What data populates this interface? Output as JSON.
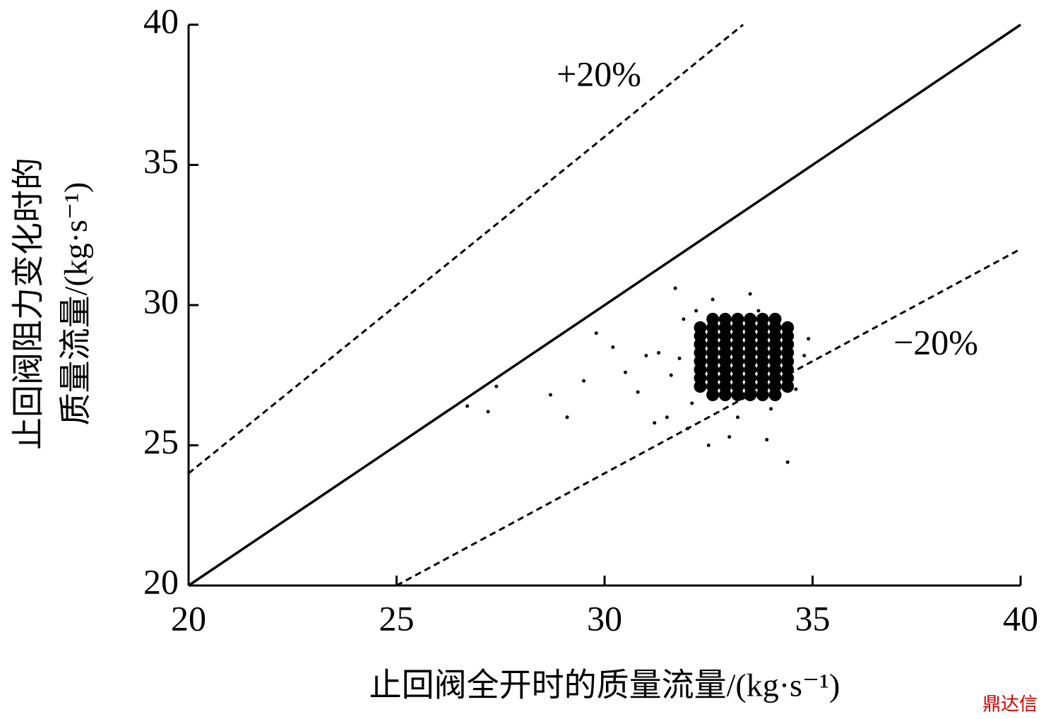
{
  "chart_data": {
    "type": "scatter",
    "x_label": "止回阀全开时的质量流量/(kg·s⁻¹)",
    "y_label": [
      "止回阀阻力变化时的",
      "质量流量/(kg·s⁻¹)"
    ],
    "xlim": [
      20,
      40
    ],
    "ylim": [
      20,
      40
    ],
    "xticks": [
      20,
      25,
      30,
      35,
      40
    ],
    "yticks": [
      20,
      25,
      30,
      35,
      40
    ],
    "lines": [
      {
        "x": [
          20,
          40
        ],
        "y": [
          20,
          40
        ],
        "color": "#000",
        "dash": false
      },
      {
        "x": [
          20,
          33.33
        ],
        "y": [
          24,
          40
        ],
        "color": "#000",
        "dash": true
      },
      {
        "x": [
          25,
          40
        ],
        "y": [
          20,
          32
        ],
        "color": "#000",
        "dash": true
      }
    ],
    "annotations": [
      "+20%",
      "−20%"
    ],
    "series": [
      {
        "color": "#000",
        "marker_size": 2.5,
        "points": [
          [
            26.7,
            26.4
          ],
          [
            27.2,
            26.2
          ],
          [
            27.4,
            27.1
          ],
          [
            28.7,
            26.8
          ],
          [
            29.1,
            26.0
          ],
          [
            29.5,
            27.3
          ],
          [
            29.8,
            29.0
          ],
          [
            30.5,
            27.6
          ],
          [
            30.8,
            26.9
          ],
          [
            31.2,
            25.8
          ],
          [
            31.5,
            26.0
          ],
          [
            31.0,
            28.2
          ],
          [
            31.7,
            30.6
          ],
          [
            32.5,
            25.0
          ],
          [
            33.0,
            25.3
          ],
          [
            34.4,
            24.4
          ],
          [
            33.9,
            25.2
          ],
          [
            32.0,
            25.6
          ],
          [
            33.5,
            30.4
          ],
          [
            31.3,
            28.3
          ],
          [
            31.6,
            27.5
          ],
          [
            34.8,
            28.2
          ],
          [
            34.6,
            27.0
          ],
          [
            32.2,
            29.8
          ],
          [
            33.7,
            29.8
          ],
          [
            30.2,
            28.5
          ],
          [
            31.9,
            29.5
          ],
          [
            31.8,
            28.1
          ],
          [
            34.9,
            28.8
          ],
          [
            32.6,
            30.2
          ],
          [
            33.2,
            26.0
          ],
          [
            34.0,
            26.3
          ],
          [
            32.1,
            26.5
          ]
        ]
      },
      {
        "color": "#000",
        "marker_size": 9,
        "points": [
          [
            32.6,
            26.8
          ],
          [
            32.9,
            26.8
          ],
          [
            33.2,
            26.8
          ],
          [
            33.5,
            26.8
          ],
          [
            33.8,
            26.8
          ],
          [
            34.1,
            26.8
          ],
          [
            32.3,
            27.1
          ],
          [
            32.6,
            27.1
          ],
          [
            32.9,
            27.1
          ],
          [
            33.2,
            27.1
          ],
          [
            33.5,
            27.1
          ],
          [
            33.8,
            27.1
          ],
          [
            34.1,
            27.1
          ],
          [
            34.4,
            27.1
          ],
          [
            32.3,
            27.4
          ],
          [
            32.6,
            27.4
          ],
          [
            32.9,
            27.4
          ],
          [
            33.2,
            27.4
          ],
          [
            33.5,
            27.4
          ],
          [
            33.8,
            27.4
          ],
          [
            34.1,
            27.4
          ],
          [
            34.4,
            27.4
          ],
          [
            32.3,
            27.7
          ],
          [
            32.6,
            27.7
          ],
          [
            32.9,
            27.7
          ],
          [
            33.2,
            27.7
          ],
          [
            33.5,
            27.7
          ],
          [
            33.8,
            27.7
          ],
          [
            34.1,
            27.7
          ],
          [
            34.4,
            27.7
          ],
          [
            32.3,
            28.0
          ],
          [
            32.6,
            28.0
          ],
          [
            32.9,
            28.0
          ],
          [
            33.2,
            28.0
          ],
          [
            33.5,
            28.0
          ],
          [
            33.8,
            28.0
          ],
          [
            34.1,
            28.0
          ],
          [
            34.4,
            28.0
          ],
          [
            32.3,
            28.3
          ],
          [
            32.6,
            28.3
          ],
          [
            32.9,
            28.3
          ],
          [
            33.2,
            28.3
          ],
          [
            33.5,
            28.3
          ],
          [
            33.8,
            28.3
          ],
          [
            34.1,
            28.3
          ],
          [
            34.4,
            28.3
          ],
          [
            32.3,
            28.6
          ],
          [
            32.6,
            28.6
          ],
          [
            32.9,
            28.6
          ],
          [
            33.2,
            28.6
          ],
          [
            33.5,
            28.6
          ],
          [
            33.8,
            28.6
          ],
          [
            34.1,
            28.6
          ],
          [
            34.4,
            28.6
          ],
          [
            32.3,
            28.9
          ],
          [
            32.6,
            28.9
          ],
          [
            32.9,
            28.9
          ],
          [
            33.2,
            28.9
          ],
          [
            33.5,
            28.9
          ],
          [
            33.8,
            28.9
          ],
          [
            34.1,
            28.9
          ],
          [
            34.4,
            28.9
          ],
          [
            32.3,
            29.2
          ],
          [
            32.6,
            29.2
          ],
          [
            32.9,
            29.2
          ],
          [
            33.2,
            29.2
          ],
          [
            33.5,
            29.2
          ],
          [
            33.8,
            29.2
          ],
          [
            34.1,
            29.2
          ],
          [
            34.4,
            29.2
          ],
          [
            32.6,
            29.5
          ],
          [
            32.9,
            29.5
          ],
          [
            33.2,
            29.5
          ],
          [
            33.5,
            29.5
          ],
          [
            33.8,
            29.5
          ],
          [
            34.1,
            29.5
          ]
        ]
      }
    ]
  },
  "watermark": "鼎达信"
}
